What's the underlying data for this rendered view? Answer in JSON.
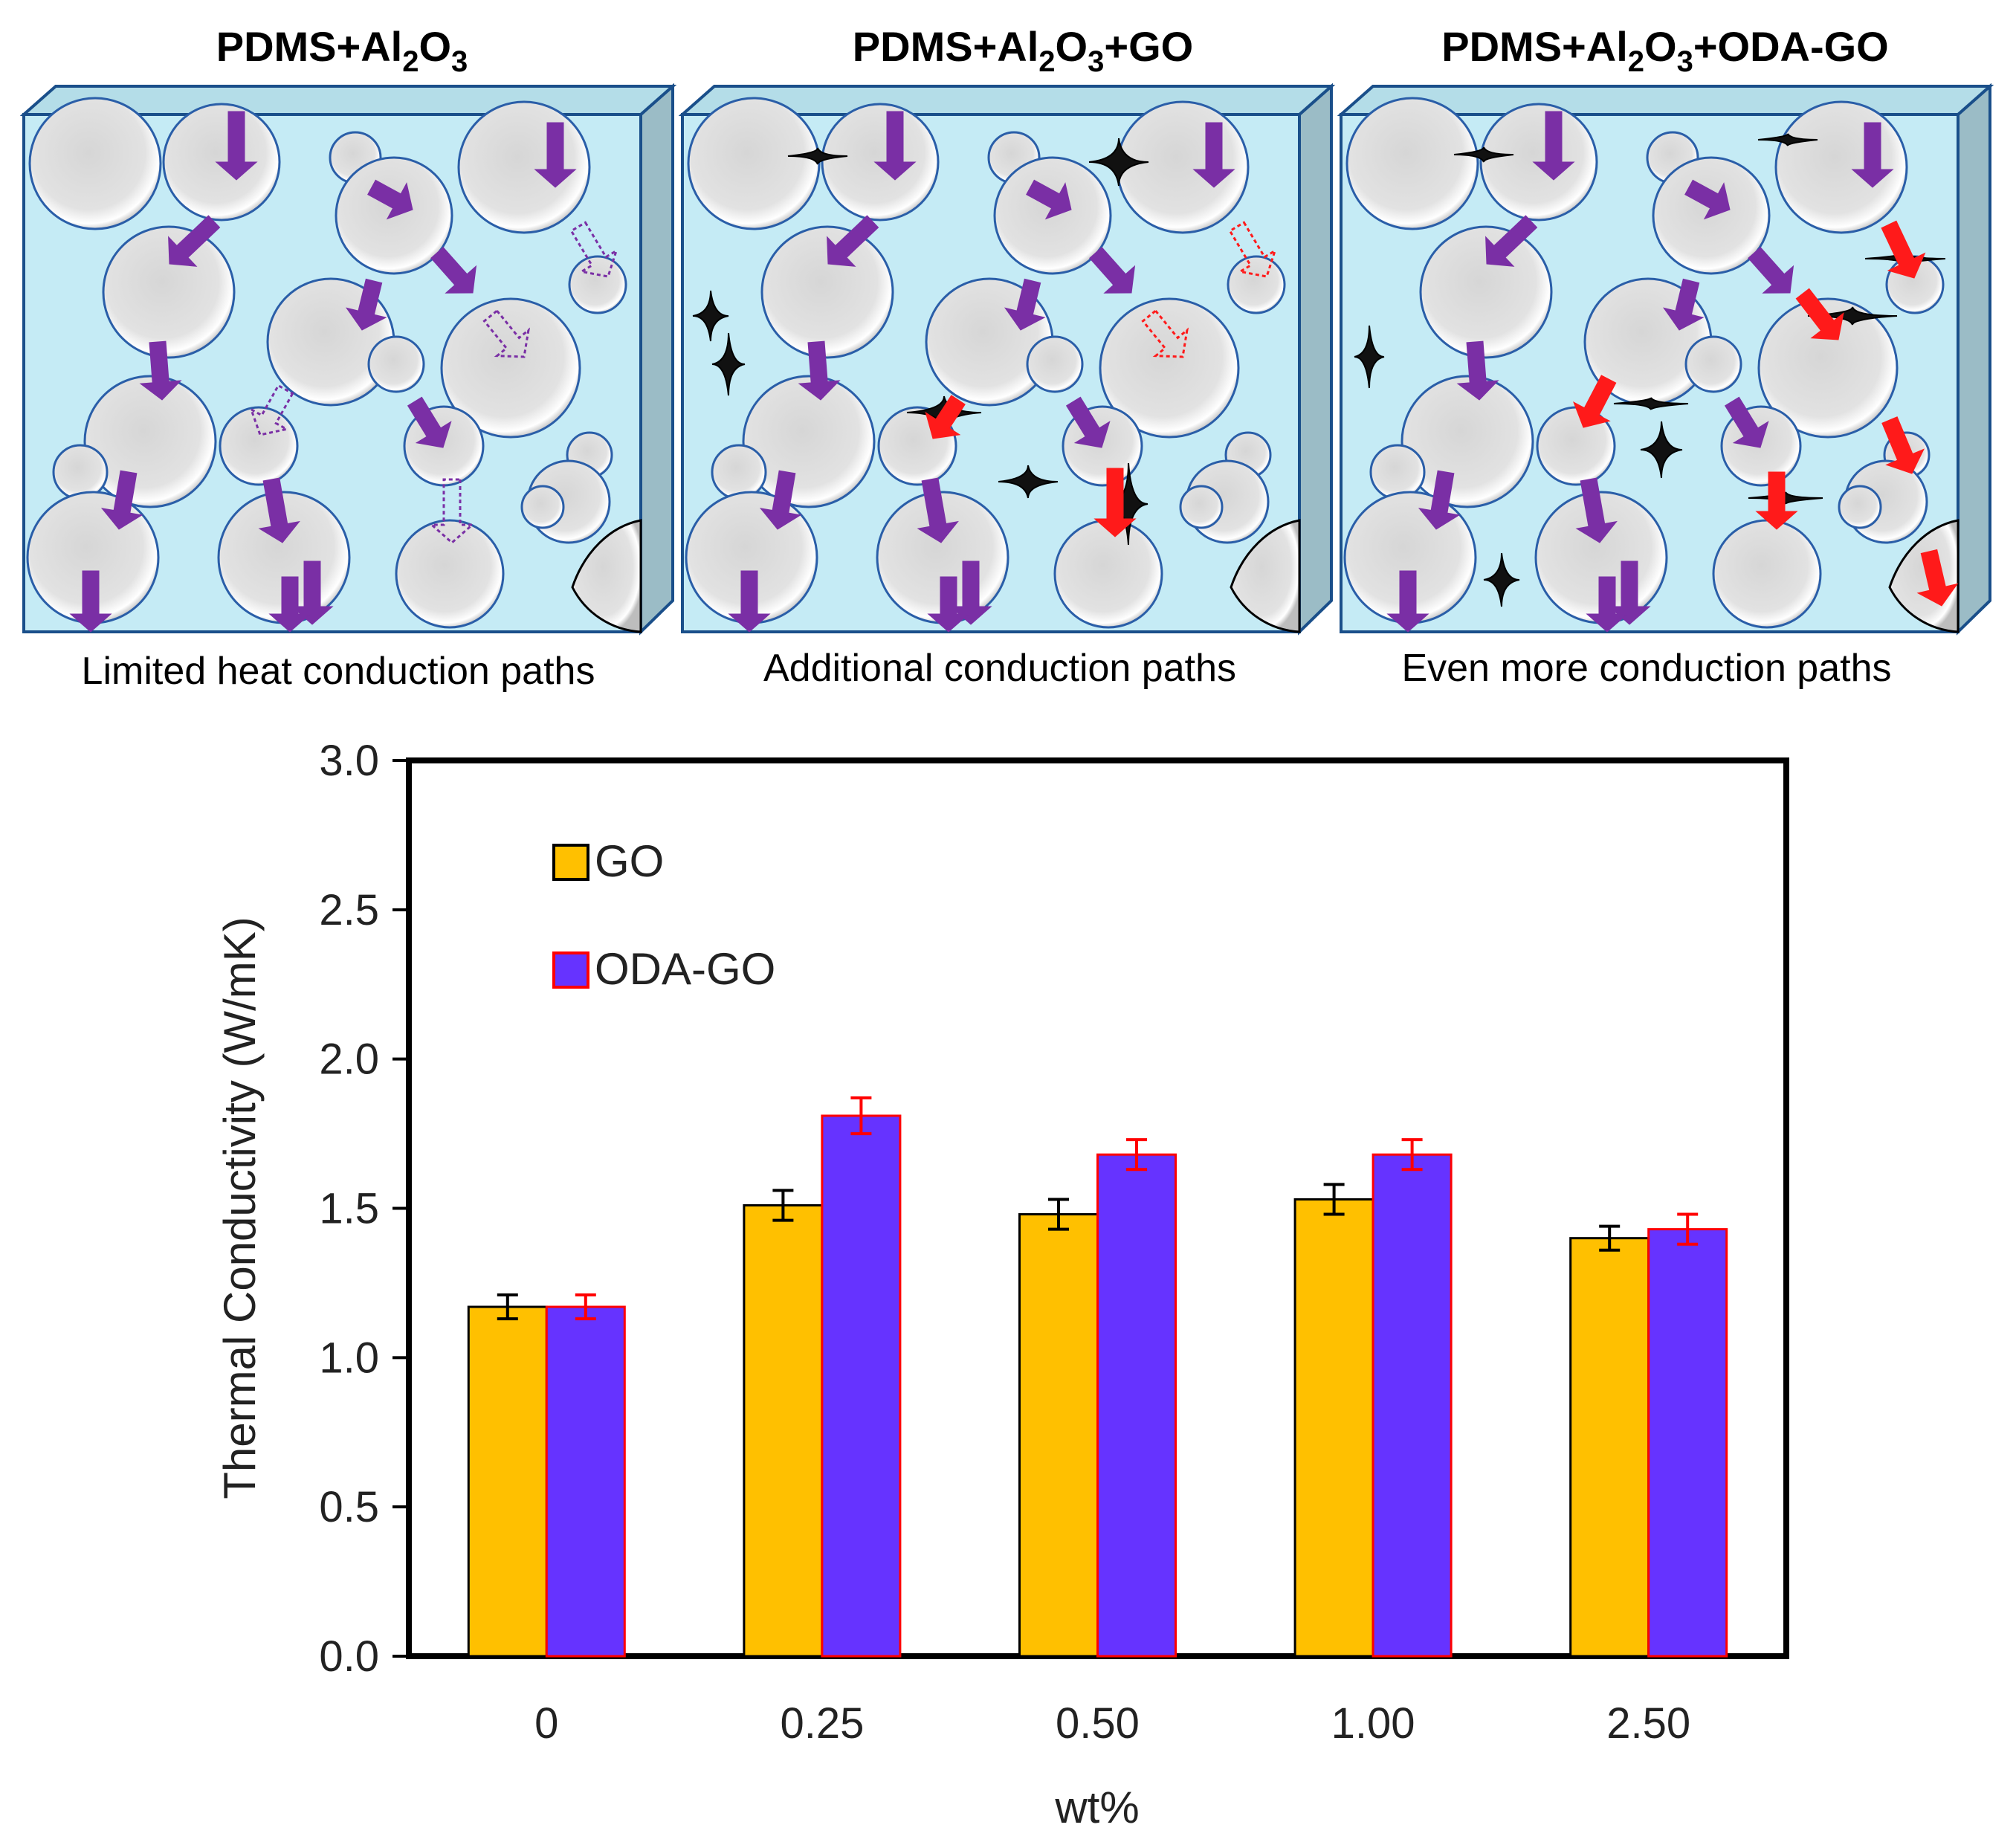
{
  "panels": [
    {
      "title_parts": [
        "PDMS+Al",
        "2",
        "O",
        "3",
        ""
      ],
      "caption": "Limited heat conduction paths"
    },
    {
      "title_parts": [
        "PDMS+Al",
        "2",
        "O",
        "3",
        "+GO"
      ],
      "caption": "Additional conduction paths"
    },
    {
      "title_parts": [
        "PDMS+Al",
        "2",
        "O",
        "3",
        "+ODA-GO"
      ],
      "caption": "Even more conduction paths"
    }
  ],
  "colors": {
    "matrix_fill": "#c5ebf5",
    "matrix_side": "#9bbcc6",
    "matrix_top": "#b4dde8",
    "sphere": "#e0e0e0",
    "path_arrow": "#7a2fa5",
    "new_path_arrow": "#ff1a1a",
    "graphene": "#111111",
    "go_bar": "#ffc000",
    "go_border": "#000000",
    "oda_bar": "#6633ff",
    "oda_border": "#ff0000"
  },
  "chart_data": {
    "type": "bar",
    "categories": [
      "0",
      "0.25",
      "0.50",
      "1.00",
      "2.50"
    ],
    "series": [
      {
        "name": "GO",
        "values": [
          1.17,
          1.51,
          1.48,
          1.53,
          1.4
        ],
        "errors": [
          0.04,
          0.05,
          0.05,
          0.05,
          0.04
        ]
      },
      {
        "name": "ODA-GO",
        "values": [
          1.17,
          1.81,
          1.68,
          1.68,
          1.43
        ],
        "errors": [
          0.04,
          0.06,
          0.05,
          0.05,
          0.05
        ]
      }
    ],
    "title": "",
    "xlabel": "wt%",
    "ylabel": "Thermal Conductivity (W/mK)",
    "ylim": [
      0,
      3.0
    ],
    "yticks": [
      "0.0",
      "0.5",
      "1.0",
      "1.5",
      "2.0",
      "2.5",
      "3.0"
    ],
    "legend_position": "top-left"
  }
}
